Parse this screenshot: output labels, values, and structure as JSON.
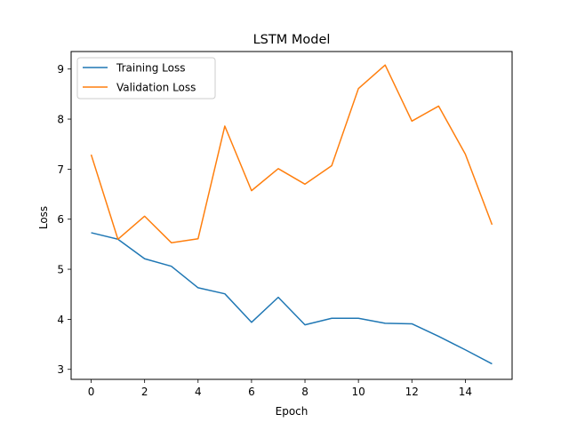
{
  "chart_data": {
    "type": "line",
    "title": "LSTM Model",
    "xlabel": "Epoch",
    "ylabel": "Loss",
    "xlim": [
      -0.75,
      15.75
    ],
    "ylim": [
      2.8,
      9.35
    ],
    "xticks": [
      0,
      2,
      4,
      6,
      8,
      10,
      12,
      14
    ],
    "yticks": [
      3,
      4,
      5,
      6,
      7,
      8,
      9
    ],
    "x": [
      0,
      1,
      2,
      3,
      4,
      5,
      6,
      7,
      8,
      9,
      10,
      11,
      12,
      13,
      14,
      15
    ],
    "series": [
      {
        "name": "Training Loss",
        "color": "#1f77b4",
        "values": [
          5.73,
          5.6,
          5.21,
          5.06,
          4.63,
          4.51,
          3.94,
          4.44,
          3.89,
          4.02,
          4.02,
          3.92,
          3.91,
          3.66,
          3.39,
          3.11
        ]
      },
      {
        "name": "Validation Loss",
        "color": "#ff7f0e",
        "values": [
          7.29,
          5.6,
          6.06,
          5.53,
          5.61,
          7.86,
          6.57,
          7.01,
          6.7,
          7.07,
          8.61,
          9.08,
          7.96,
          8.26,
          7.3,
          5.89
        ]
      }
    ],
    "grid": false,
    "legend_position": "top-left"
  }
}
